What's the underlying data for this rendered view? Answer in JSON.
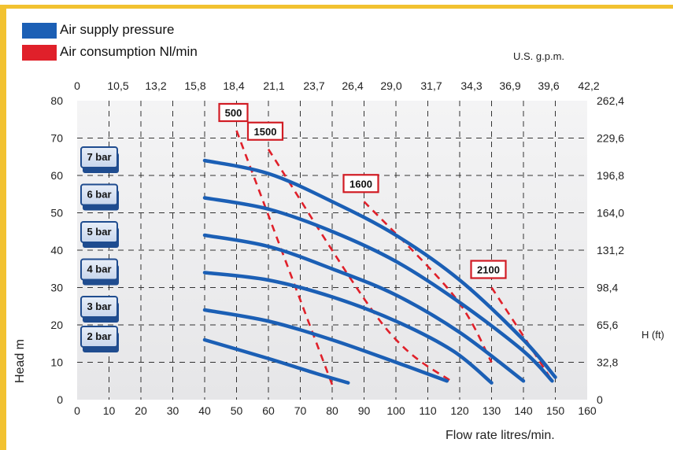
{
  "legend": {
    "items": [
      {
        "label": "Air supply pressure",
        "color": "#1b5fb5"
      },
      {
        "label": "Air consumption Nl/min",
        "color": "#e0202a"
      }
    ]
  },
  "chart_data": {
    "type": "line",
    "xlabel": "Flow rate litres/min.",
    "ylabel": "Head m",
    "y2label": "H (ft)",
    "x2label": "U.S. g.p.m.",
    "xlim": [
      0,
      160
    ],
    "ylim": [
      0,
      80
    ],
    "x_ticks": [
      "0",
      "10",
      "20",
      "30",
      "40",
      "50",
      "60",
      "70",
      "80",
      "90",
      "100",
      "110",
      "120",
      "130",
      "140",
      "150",
      "160"
    ],
    "y_ticks": [
      "0",
      "10",
      "20",
      "30",
      "40",
      "50",
      "60",
      "70",
      "80"
    ],
    "x2_ticks": [
      "0",
      "10,5",
      "13,2",
      "15,8",
      "18,4",
      "21,1",
      "23,7",
      "26,4",
      "29,0",
      "31,7",
      "34,3",
      "36,9",
      "39,6",
      "42,2"
    ],
    "y2_ticks": [
      "0",
      "32,8",
      "65,6",
      "98,4",
      "131,2",
      "164,0",
      "196,8",
      "229,6",
      "262,4"
    ],
    "grid": true,
    "pressure_series": [
      {
        "name": "2 bar",
        "points": [
          [
            40,
            16
          ],
          [
            60,
            11
          ],
          [
            75,
            7
          ],
          [
            85,
            4.5
          ]
        ]
      },
      {
        "name": "3 bar",
        "points": [
          [
            40,
            24
          ],
          [
            60,
            21
          ],
          [
            80,
            16
          ],
          [
            100,
            10
          ],
          [
            116,
            5
          ]
        ]
      },
      {
        "name": "4 bar",
        "points": [
          [
            40,
            34
          ],
          [
            60,
            32
          ],
          [
            80,
            27.5
          ],
          [
            100,
            21
          ],
          [
            118,
            13
          ],
          [
            130,
            4.5
          ]
        ]
      },
      {
        "name": "5 bar",
        "points": [
          [
            40,
            44
          ],
          [
            60,
            41
          ],
          [
            80,
            35
          ],
          [
            100,
            28
          ],
          [
            120,
            18
          ],
          [
            140,
            5
          ]
        ]
      },
      {
        "name": "6 bar",
        "points": [
          [
            40,
            54
          ],
          [
            60,
            51
          ],
          [
            80,
            45
          ],
          [
            100,
            37
          ],
          [
            120,
            26
          ],
          [
            140,
            13
          ],
          [
            149,
            5
          ]
        ]
      },
      {
        "name": "7 bar",
        "points": [
          [
            40,
            64
          ],
          [
            60,
            60.5
          ],
          [
            80,
            53
          ],
          [
            100,
            44
          ],
          [
            120,
            32
          ],
          [
            140,
            16
          ],
          [
            150,
            6
          ]
        ]
      }
    ],
    "consumption_series": [
      {
        "name": "500",
        "points": [
          [
            50,
            72
          ],
          [
            80,
            4
          ]
        ]
      },
      {
        "name": "1500",
        "points": [
          [
            60,
            67
          ],
          [
            96,
            20
          ],
          [
            118,
            4.5
          ]
        ]
      },
      {
        "name": "1600",
        "points": [
          [
            90,
            53
          ],
          [
            118,
            28
          ],
          [
            130,
            10
          ]
        ]
      },
      {
        "name": "2100",
        "points": [
          [
            130,
            30
          ],
          [
            140,
            17
          ],
          [
            149,
            5
          ]
        ]
      }
    ]
  }
}
